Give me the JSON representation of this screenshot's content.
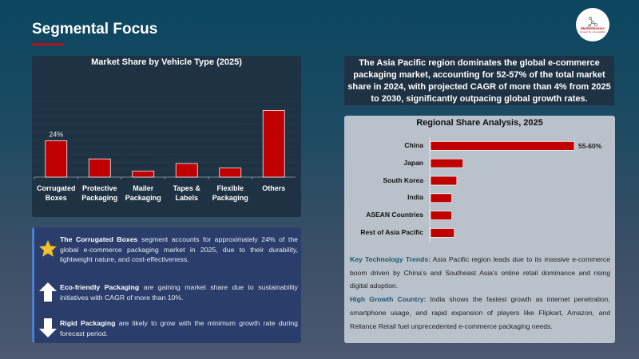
{
  "header": {
    "title": "Segmental Focus",
    "logo_text": "MarketGenics",
    "logo_tagline": "Infused. by. Accessibility"
  },
  "colors": {
    "bar": "#c00000",
    "accent": "#b0151b",
    "highlight_text": "#1d5570"
  },
  "chart_data": [
    {
      "type": "bar",
      "title": "Market Share by Vehicle Type (2025)",
      "categories": [
        "Corrugated Boxes",
        "Protective Packaging",
        "Mailer Packaging",
        "Tapes & Labels",
        "Flexible Packaging",
        "Others"
      ],
      "values": [
        24,
        12,
        4,
        9,
        6,
        44
      ],
      "data_labels": [
        "24%",
        "",
        "",
        "",
        "",
        ""
      ],
      "unit": "%",
      "ylim": [
        0,
        50
      ],
      "grid": true,
      "xlabel": "",
      "ylabel": ""
    },
    {
      "type": "bar",
      "orientation": "horizontal",
      "title": "Regional Share Analysis, 2025",
      "categories": [
        "China",
        "Japan",
        "South Korea",
        "India",
        "ASEAN Countries",
        "Rest of Asia Pacific"
      ],
      "values": [
        57.5,
        13,
        10.5,
        8.5,
        8.5,
        9.5
      ],
      "data_labels": [
        "55-60%",
        "",
        "",
        "",
        "",
        ""
      ],
      "unit": "%",
      "grid": false
    }
  ],
  "summary": "The Asia Pacific region dominates the global e-commerce packaging market, accounting for 52-57% of the total market share in 2024, with projected CAGR of more than 4% from 2025 to 2030, significantly outpacing global growth rates.",
  "notes": {
    "trends_label": "Key Technology Trends:",
    "trends_text": " Asia Pacific region leads due to its massive e-commerce boom driven by China's and Southeast Asia's online retail dominance and rising digital adoption.",
    "growth_label": "High Growth Country:",
    "growth_text": " India shows the fastest growth as internet penetration, smartphone usage, and rapid expansion of players like Flipkart, Amazon, and Reliance Retail fuel unprecedented e-commerce packaging needs."
  },
  "bullets": [
    {
      "icon": "star-icon",
      "bold": "The Corrugated Boxes",
      "text": " segment accounts for approximately 24% of the global e-commerce packaging market in 2025, due to their durability, lightweight nature, and cost-effectiveness."
    },
    {
      "icon": "arrow-up-icon",
      "bold": "Eco-friendly Packaging",
      "text": " are gaining market share due to sustainability initiatives with CAGR of more than 10%."
    },
    {
      "icon": "arrow-down-icon",
      "bold": "Rigid Packaging",
      "text": " are likely to grow with the minimum growth rate during forecast period."
    }
  ]
}
